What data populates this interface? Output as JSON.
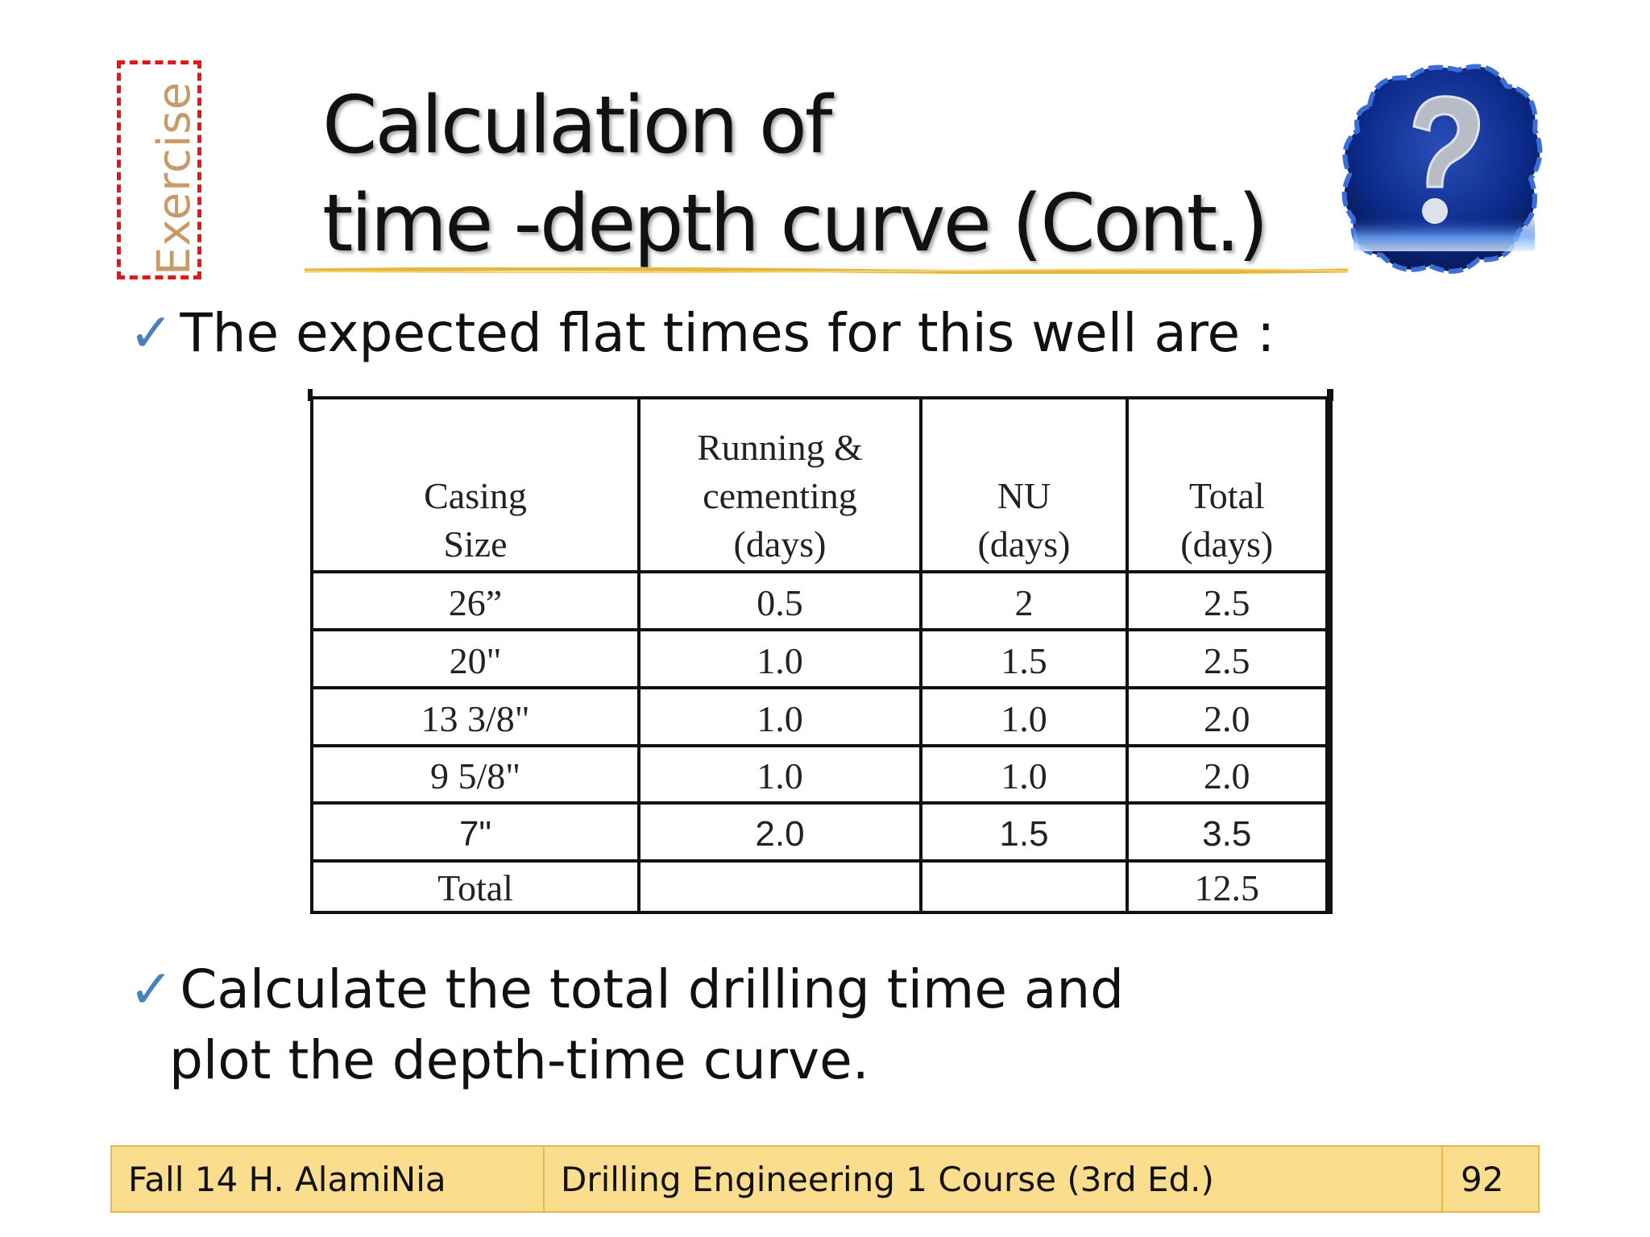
{
  "badge": {
    "label": "Exercise"
  },
  "title": {
    "line1": "Calculation of",
    "line2": "time -depth curve (Cont.)"
  },
  "icons": {
    "bullet": "check-icon",
    "decor": "question-cloud-icon"
  },
  "bullets": {
    "intro": "The expected flat times for this well are :",
    "task_line1": "Calculate the total drilling time and",
    "task_line2": "plot the depth-time curve."
  },
  "table": {
    "headers": {
      "casing": [
        "Casing",
        "Size"
      ],
      "running": [
        "Running &",
        "cementing",
        "(days)"
      ],
      "nu": [
        "NU",
        "(days)"
      ],
      "total": [
        "Total",
        "(days)"
      ]
    },
    "rows": [
      {
        "casing": "26”",
        "running": "0.5",
        "nu": "2",
        "total": "2.5"
      },
      {
        "casing": "20\"",
        "running": "1.0",
        "nu": "1.5",
        "total": "2.5"
      },
      {
        "casing": "13 3/8\"",
        "running": "1.0",
        "nu": "1.0",
        "total": "2.0"
      },
      {
        "casing": "9 5/8\"",
        "running": "1.0",
        "nu": "1.0",
        "total": "2.0"
      },
      {
        "casing": "7\"",
        "running": "2.0",
        "nu": "1.5",
        "total": "3.5"
      }
    ],
    "total_row": {
      "label": "Total",
      "running": "",
      "nu": "",
      "total": "12.5"
    }
  },
  "footer": {
    "left": "Fall 14 H. AlamiNia",
    "center": "Drilling Engineering 1 Course (3rd Ed.)",
    "page": "92"
  },
  "colors": {
    "accent_check": "#4a7fc1",
    "badge_border": "#e01818",
    "footer_bg": "#fbdd8e"
  }
}
